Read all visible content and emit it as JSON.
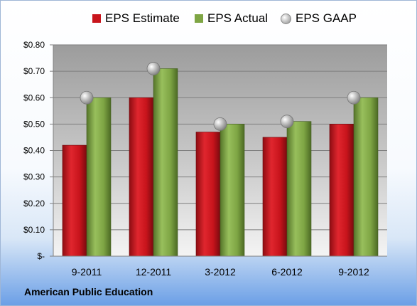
{
  "company": "American Public Education",
  "legend": {
    "estimate": "EPS Estimate",
    "actual": "EPS Actual",
    "gaap": "EPS GAAP"
  },
  "colors": {
    "estimate": "#c8141c",
    "actual": "#7ea544",
    "gaap": "#b3b3b3"
  },
  "chart_data": {
    "type": "bar",
    "categories": [
      "9-2011",
      "12-2011",
      "3-2012",
      "6-2012",
      "9-2012"
    ],
    "series": [
      {
        "name": "EPS Estimate",
        "values": [
          0.42,
          0.6,
          0.47,
          0.45,
          0.5
        ]
      },
      {
        "name": "EPS Actual",
        "values": [
          0.6,
          0.71,
          0.5,
          0.51,
          0.6
        ]
      },
      {
        "name": "EPS GAAP",
        "values": [
          0.6,
          0.71,
          0.5,
          0.51,
          0.6
        ],
        "type": "scatter"
      }
    ],
    "ylim": [
      0,
      0.8
    ],
    "yticks": [
      0,
      0.1,
      0.2,
      0.3,
      0.4,
      0.5,
      0.6,
      0.7,
      0.8
    ],
    "ytick_labels": [
      "$-",
      "$0.10",
      "$0.20",
      "$0.30",
      "$0.40",
      "$0.50",
      "$0.60",
      "$0.70",
      "$0.80"
    ],
    "grid": true,
    "legend_position": "top"
  }
}
